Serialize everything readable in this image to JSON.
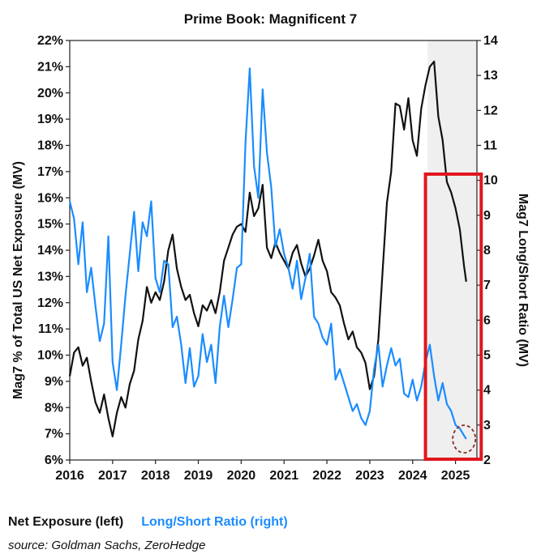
{
  "chart_data": {
    "type": "line",
    "title": "Prime Book: Magnificent 7",
    "y_left_label": "Mag7 % of Total US Net Exposure (MV)",
    "y_right_label": "Mag7 Long/Short Ratio (MV)",
    "x_ticks": [
      "2016",
      "2017",
      "2018",
      "2019",
      "2020",
      "2021",
      "2022",
      "2023",
      "2024",
      "2025"
    ],
    "y_left_ticks": [
      "22%",
      "21%",
      "20%",
      "19%",
      "18%",
      "17%",
      "16%",
      "15%",
      "14%",
      "13%",
      "12%",
      "11%",
      "10%",
      "9%",
      "8%",
      "7%",
      "6%"
    ],
    "y_right_ticks": [
      "14",
      "13",
      "12",
      "11",
      "10",
      "9",
      "8",
      "7",
      "6",
      "5",
      "4",
      "3",
      "2"
    ],
    "ylim_left": [
      6,
      22
    ],
    "ylim_right": [
      2,
      14
    ],
    "xlim": [
      2016.0,
      2025.5
    ],
    "shaded_region": [
      2024.35,
      2025.5
    ],
    "highlight_box": [
      2024.3,
      2025.6
    ],
    "highlight_circle": {
      "x": 2025.2,
      "y_right": 2.6
    },
    "series": [
      {
        "name": "Net Exposure (left)",
        "axis": "left",
        "color": "#111111",
        "x": [
          2016.0,
          2016.1,
          2016.2,
          2016.3,
          2016.4,
          2016.5,
          2016.6,
          2016.7,
          2016.8,
          2016.9,
          2017.0,
          2017.1,
          2017.2,
          2017.3,
          2017.4,
          2017.5,
          2017.6,
          2017.7,
          2017.8,
          2017.9,
          2018.0,
          2018.1,
          2018.2,
          2018.3,
          2018.4,
          2018.5,
          2018.6,
          2018.7,
          2018.8,
          2018.9,
          2019.0,
          2019.1,
          2019.2,
          2019.3,
          2019.4,
          2019.5,
          2019.6,
          2019.7,
          2019.8,
          2019.9,
          2020.0,
          2020.1,
          2020.2,
          2020.3,
          2020.4,
          2020.5,
          2020.6,
          2020.7,
          2020.8,
          2020.9,
          2021.0,
          2021.1,
          2021.2,
          2021.3,
          2021.4,
          2021.5,
          2021.6,
          2021.7,
          2021.8,
          2021.9,
          2022.0,
          2022.1,
          2022.2,
          2022.3,
          2022.4,
          2022.5,
          2022.6,
          2022.7,
          2022.8,
          2022.9,
          2023.0,
          2023.1,
          2023.2,
          2023.3,
          2023.4,
          2023.5,
          2023.6,
          2023.7,
          2023.8,
          2023.9,
          2024.0,
          2024.1,
          2024.2,
          2024.3,
          2024.4,
          2024.5,
          2024.6,
          2024.7,
          2024.8,
          2024.9,
          2025.0,
          2025.1,
          2025.2,
          2025.25
        ],
        "values": [
          9.2,
          10.1,
          10.3,
          9.6,
          9.9,
          9.0,
          8.2,
          7.8,
          8.5,
          7.6,
          6.9,
          7.8,
          8.4,
          8.0,
          8.9,
          9.4,
          10.6,
          11.3,
          12.6,
          12.0,
          12.4,
          12.1,
          12.8,
          14.0,
          14.6,
          13.3,
          12.6,
          12.1,
          12.3,
          11.6,
          11.1,
          11.9,
          11.7,
          12.1,
          11.6,
          12.4,
          13.6,
          14.1,
          14.6,
          14.9,
          15.0,
          14.7,
          16.2,
          15.3,
          15.6,
          16.5,
          14.1,
          13.7,
          14.3,
          13.9,
          13.6,
          13.3,
          13.9,
          14.2,
          13.5,
          13.0,
          13.3,
          13.8,
          14.4,
          13.6,
          13.2,
          12.4,
          12.2,
          11.9,
          11.2,
          10.6,
          10.9,
          10.3,
          10.1,
          9.7,
          8.7,
          9.2,
          10.6,
          13.2,
          15.8,
          17.0,
          19.6,
          19.5,
          18.6,
          19.8,
          18.2,
          17.6,
          19.4,
          20.3,
          21.0,
          21.2,
          19.1,
          18.2,
          16.6,
          16.2,
          15.6,
          14.8,
          13.4,
          12.8
        ]
      },
      {
        "name": "Long/Short Ratio (right)",
        "axis": "right",
        "color": "#1a8cff",
        "x": [
          2016.0,
          2016.1,
          2016.2,
          2016.3,
          2016.4,
          2016.5,
          2016.6,
          2016.7,
          2016.8,
          2016.9,
          2017.0,
          2017.1,
          2017.2,
          2017.3,
          2017.4,
          2017.5,
          2017.6,
          2017.7,
          2017.8,
          2017.9,
          2018.0,
          2018.1,
          2018.2,
          2018.3,
          2018.4,
          2018.5,
          2018.6,
          2018.7,
          2018.8,
          2018.9,
          2019.0,
          2019.1,
          2019.2,
          2019.3,
          2019.4,
          2019.5,
          2019.6,
          2019.7,
          2019.8,
          2019.9,
          2020.0,
          2020.1,
          2020.2,
          2020.3,
          2020.4,
          2020.5,
          2020.6,
          2020.7,
          2020.8,
          2020.9,
          2021.0,
          2021.1,
          2021.2,
          2021.3,
          2021.4,
          2021.5,
          2021.6,
          2021.7,
          2021.8,
          2021.9,
          2022.0,
          2022.1,
          2022.2,
          2022.3,
          2022.4,
          2022.5,
          2022.6,
          2022.7,
          2022.8,
          2022.9,
          2023.0,
          2023.1,
          2023.2,
          2023.3,
          2023.4,
          2023.5,
          2023.6,
          2023.7,
          2023.8,
          2023.9,
          2024.0,
          2024.1,
          2024.2,
          2024.3,
          2024.4,
          2024.5,
          2024.6,
          2024.7,
          2024.8,
          2024.9,
          2025.0,
          2025.1,
          2025.2,
          2025.25
        ],
        "values": [
          9.4,
          8.9,
          7.6,
          8.8,
          6.8,
          7.5,
          6.4,
          5.4,
          5.9,
          8.4,
          4.8,
          4.0,
          5.3,
          6.7,
          7.9,
          9.1,
          7.4,
          8.8,
          8.4,
          9.4,
          7.2,
          6.8,
          7.7,
          7.6,
          5.8,
          6.1,
          5.3,
          4.2,
          5.2,
          4.1,
          4.4,
          5.6,
          4.8,
          5.3,
          4.2,
          5.8,
          6.7,
          5.8,
          6.6,
          7.5,
          7.6,
          11.1,
          13.2,
          10.4,
          9.5,
          12.6,
          10.8,
          9.8,
          8.1,
          8.6,
          7.9,
          7.5,
          6.9,
          7.7,
          6.6,
          7.2,
          7.9,
          6.1,
          5.9,
          5.5,
          5.3,
          5.9,
          4.3,
          4.6,
          4.2,
          3.8,
          3.4,
          3.6,
          3.2,
          3.0,
          3.4,
          4.6,
          5.3,
          4.1,
          4.7,
          5.2,
          4.7,
          4.9,
          3.9,
          3.8,
          4.3,
          3.7,
          4.1,
          4.8,
          5.3,
          4.4,
          3.7,
          4.2,
          3.6,
          3.4,
          3.0,
          2.9,
          2.7,
          2.6
        ]
      }
    ]
  },
  "legend": {
    "net_exposure": "Net Exposure (left)",
    "long_short": "Long/Short Ratio (right)"
  },
  "source": "source: Goldman Sachs, ZeroHedge"
}
